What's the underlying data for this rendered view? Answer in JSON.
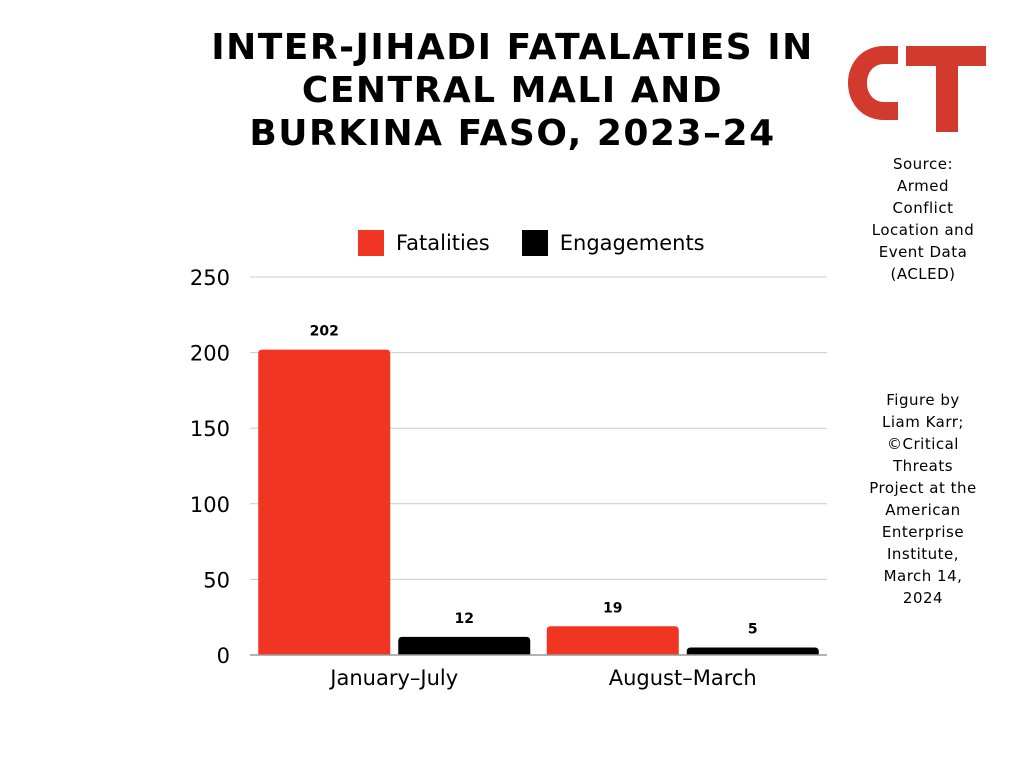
{
  "title_lines": [
    "INTER-JIHADI FATALATIES IN",
    "CENTRAL MALI AND",
    "BURKINA FASO, 2023–24"
  ],
  "logo": {
    "text": "CT",
    "color": "#d13a2c"
  },
  "source_lines": [
    "Source:",
    "Armed",
    "Conflict",
    "Location and",
    "Event Data",
    "(ACLED)"
  ],
  "credit_lines": [
    "Figure by",
    "Liam Karr;",
    "©Critical",
    "Threats",
    "Project at the",
    "American",
    "Enterprise",
    "Institute,",
    "March 14,",
    "2024"
  ],
  "chart_data": {
    "type": "bar",
    "categories": [
      "January–July",
      "August–March"
    ],
    "series": [
      {
        "name": "Fatalities",
        "values": [
          202,
          19
        ],
        "color": "#f03522"
      },
      {
        "name": "Engagements",
        "values": [
          12,
          5
        ],
        "color": "#000000"
      }
    ],
    "ylim": [
      0,
      250
    ],
    "yticks": [
      "0",
      "50",
      "100",
      "150",
      "200",
      "250"
    ],
    "ytick_values": [
      0,
      50,
      100,
      150,
      200,
      250
    ],
    "grid": true,
    "legend_position": "top",
    "data_labels": [
      [
        "202",
        "19"
      ],
      [
        "12",
        "5"
      ]
    ]
  }
}
